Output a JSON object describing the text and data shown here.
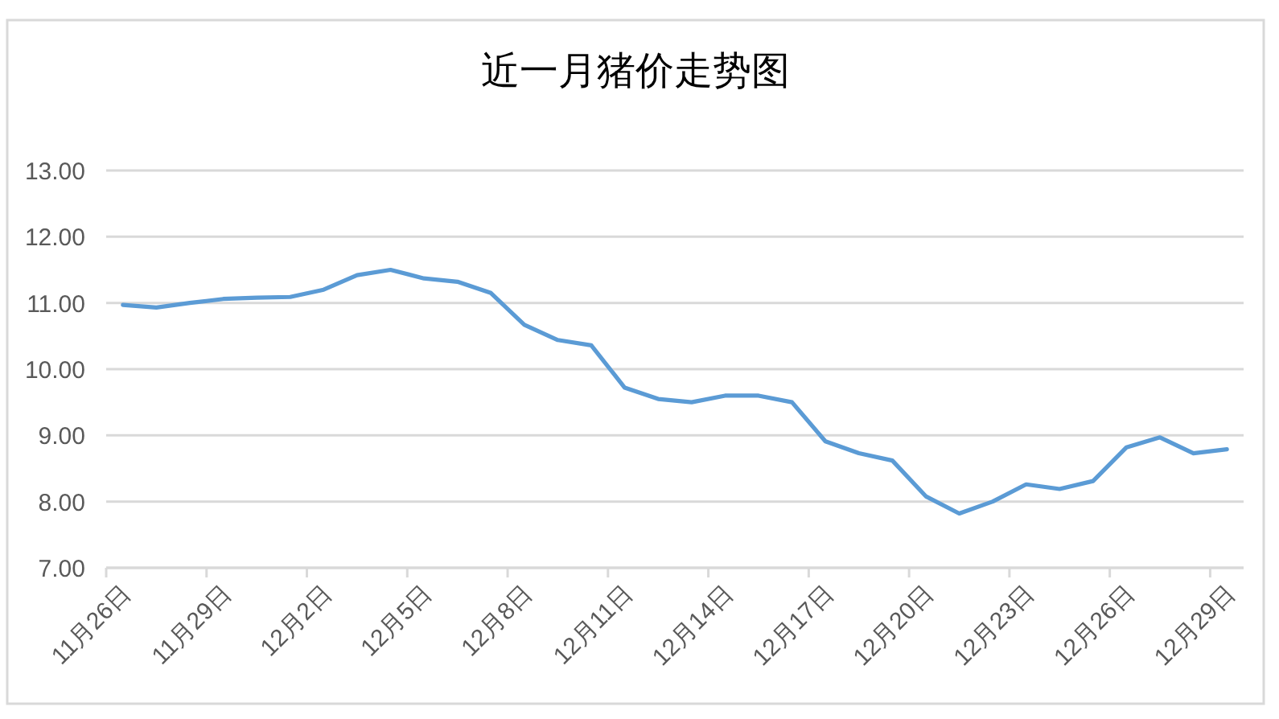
{
  "chart_data": {
    "type": "line",
    "title": "近一月猪价走势图",
    "categories": [
      "11月26日",
      null,
      null,
      "11月29日",
      null,
      null,
      "12月2日",
      null,
      null,
      "12月5日",
      null,
      null,
      "12月8日",
      null,
      null,
      "12月11日",
      null,
      null,
      "12月14日",
      null,
      null,
      "12月17日",
      null,
      null,
      "12月20日",
      null,
      null,
      "12月23日",
      null,
      null,
      "12月26日",
      null,
      null,
      "12月29日"
    ],
    "series": [
      {
        "color": "#5b9bd5",
        "values": [
          10.97,
          10.93,
          11.0,
          11.06,
          11.08,
          11.09,
          11.2,
          11.42,
          11.5,
          11.37,
          11.32,
          11.15,
          10.67,
          10.44,
          10.36,
          9.72,
          9.55,
          9.5,
          9.6,
          9.6,
          9.5,
          8.91,
          8.73,
          8.62,
          8.08,
          7.82,
          8.0,
          8.26,
          8.19,
          8.31,
          8.82,
          8.97,
          8.73,
          8.79
        ]
      }
    ],
    "ylim": [
      7,
      13
    ],
    "yticks": [
      {
        "value": 7,
        "label": "7.00"
      },
      {
        "value": 8,
        "label": "8.00"
      },
      {
        "value": 9,
        "label": "9.00"
      },
      {
        "value": 10,
        "label": "10.00"
      },
      {
        "value": 11,
        "label": "11.00"
      },
      {
        "value": 12,
        "label": "12.00"
      },
      {
        "value": 13,
        "label": "13.00"
      }
    ],
    "grid": "y",
    "line_style": "solid"
  }
}
